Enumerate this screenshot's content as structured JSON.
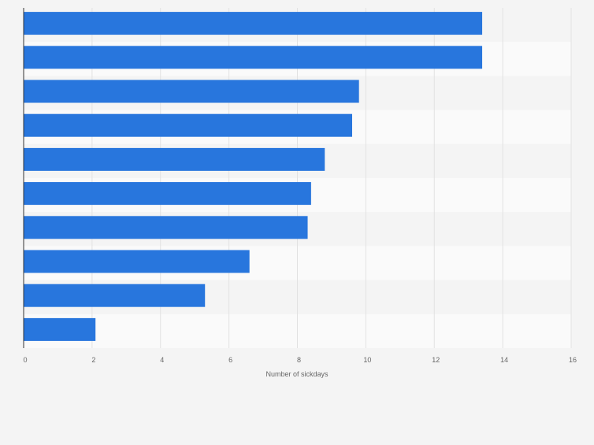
{
  "chart_data": {
    "type": "bar",
    "orientation": "horizontal",
    "categories": [
      "",
      "",
      "",
      "",
      "",
      "",
      "",
      "",
      "",
      ""
    ],
    "values": [
      13.4,
      13.4,
      9.8,
      9.6,
      8.8,
      8.4,
      8.3,
      6.6,
      5.3,
      2.1
    ],
    "xlabel": "Number of sickdays",
    "ylabel": "",
    "xlim": [
      0,
      16
    ],
    "xticks": [
      0,
      2,
      4,
      6,
      8,
      10,
      12,
      14,
      16
    ],
    "tick_labels": [
      "0",
      "2",
      "4",
      "6",
      "8",
      "10",
      "12",
      "14",
      "16"
    ],
    "grid": true,
    "colors": {
      "bar": "#2876dd",
      "background": "#f4f4f4",
      "band_light": "#fafafa",
      "band_dark": "#f4f4f4",
      "grid": "#e2e2e2",
      "axis": "#333333",
      "tick_text": "#666666"
    }
  }
}
